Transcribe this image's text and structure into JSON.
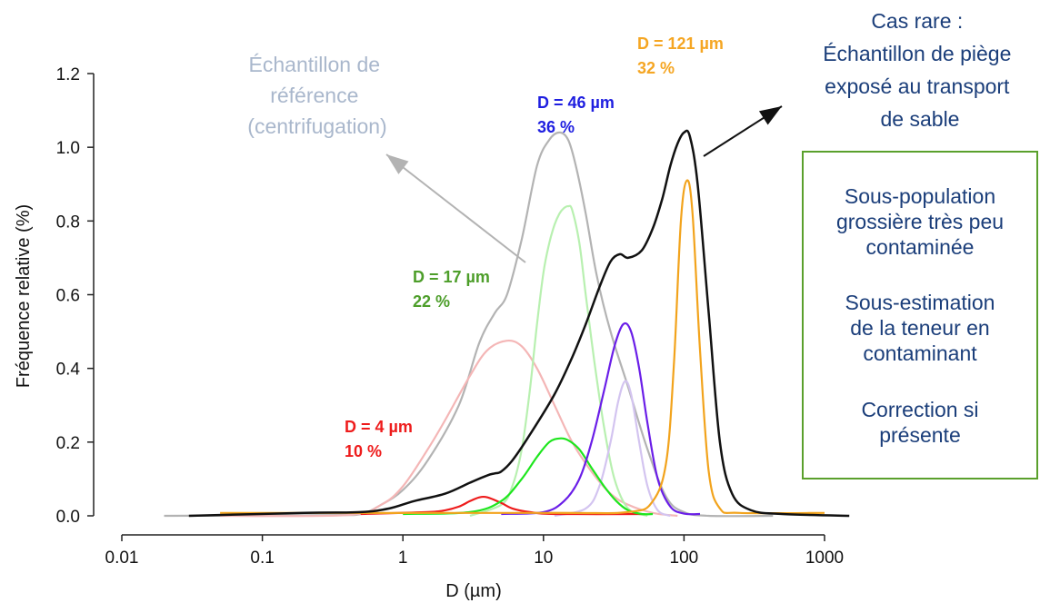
{
  "chart_data": {
    "type": "line",
    "title": "",
    "xlabel": "D (µm)",
    "ylabel": "Fréquence relative (%)",
    "xscale": "log",
    "xlim": [
      0.01,
      1000
    ],
    "ylim": [
      0,
      1.2
    ],
    "xticks": [
      "0.01",
      "0.1",
      "1",
      "10",
      "100",
      "1000"
    ],
    "yticks": [
      "0.0",
      "0.2",
      "0.4",
      "0.6",
      "0.8",
      "1.0",
      "1.2"
    ],
    "grid": false,
    "series": [
      {
        "color": "#b3b3b3",
        "x": [
          0.02,
          0.3,
          0.5,
          0.7,
          1.0,
          1.5,
          2.5,
          3.5,
          4.5,
          5.5,
          7,
          9,
          11,
          13,
          15,
          17,
          20,
          24,
          30,
          40,
          55,
          75,
          100,
          150,
          430
        ],
        "y": [
          0,
          0.002,
          0.005,
          0.03,
          0.07,
          0.15,
          0.3,
          0.47,
          0.55,
          0.6,
          0.75,
          0.95,
          1.02,
          1.04,
          1.02,
          0.95,
          0.82,
          0.65,
          0.5,
          0.35,
          0.18,
          0.05,
          0.01,
          0,
          0
        ]
      },
      {
        "color": "#f4b6b6",
        "x": [
          0.05,
          0.4,
          0.7,
          1.0,
          1.5,
          2,
          3,
          4,
          5.5,
          7,
          9,
          12,
          16,
          22,
          30,
          40,
          60,
          90
        ],
        "y": [
          0,
          0.002,
          0.03,
          0.08,
          0.18,
          0.26,
          0.38,
          0.45,
          0.475,
          0.46,
          0.4,
          0.3,
          0.2,
          0.12,
          0.06,
          0.03,
          0.008,
          0
        ]
      },
      {
        "color": "#b8f0b0",
        "x": [
          3,
          5,
          6,
          7,
          8,
          9,
          10,
          11,
          12,
          13,
          14,
          15,
          16,
          18,
          20,
          23,
          27,
          32,
          40,
          55
        ],
        "y": [
          0,
          0.03,
          0.08,
          0.18,
          0.34,
          0.52,
          0.66,
          0.74,
          0.79,
          0.82,
          0.835,
          0.84,
          0.83,
          0.74,
          0.6,
          0.42,
          0.24,
          0.1,
          0.02,
          0
        ]
      },
      {
        "color": "#d3c4f0",
        "x": [
          12,
          20,
          25,
          30,
          34,
          38,
          42,
          48,
          55,
          65,
          80
        ],
        "y": [
          0,
          0.02,
          0.08,
          0.2,
          0.31,
          0.365,
          0.33,
          0.2,
          0.08,
          0.015,
          0
        ]
      },
      {
        "color": "#ee1c1c",
        "x": [
          0.5,
          1.5,
          2,
          2.5,
          3,
          3.5,
          4,
          5,
          6,
          8,
          12,
          50
        ],
        "y": [
          0.005,
          0.01,
          0.015,
          0.025,
          0.04,
          0.05,
          0.05,
          0.035,
          0.02,
          0.01,
          0.005,
          0.005
        ]
      },
      {
        "color": "#1ee61e",
        "x": [
          1,
          3,
          5,
          7,
          9,
          11,
          13,
          15,
          18,
          22,
          27,
          33,
          40,
          50,
          60
        ],
        "y": [
          0.005,
          0.01,
          0.04,
          0.1,
          0.16,
          0.2,
          0.21,
          0.205,
          0.18,
          0.13,
          0.08,
          0.04,
          0.015,
          0.005,
          0.005
        ]
      },
      {
        "color": "#6a1ee8",
        "x": [
          5,
          10,
          14,
          18,
          22,
          27,
          32,
          37,
          42,
          48,
          55,
          65,
          80,
          100,
          130
        ],
        "y": [
          0.005,
          0.01,
          0.04,
          0.1,
          0.2,
          0.34,
          0.46,
          0.52,
          0.5,
          0.4,
          0.25,
          0.1,
          0.025,
          0.006,
          0.005
        ]
      },
      {
        "color": "#f2a31c",
        "x": [
          0.05,
          10,
          40,
          60,
          75,
          85,
          95,
          105,
          115,
          130,
          150,
          180,
          250,
          1000
        ],
        "y": [
          0.008,
          0.008,
          0.01,
          0.04,
          0.15,
          0.42,
          0.8,
          0.91,
          0.82,
          0.45,
          0.12,
          0.02,
          0.008,
          0.008
        ]
      },
      {
        "color": "#111111",
        "x": [
          0.03,
          0.2,
          0.5,
          0.8,
          1.2,
          2,
          3,
          4,
          4.5,
          5,
          6,
          8,
          12,
          16,
          20,
          25,
          30,
          35,
          40,
          50,
          60,
          70,
          80,
          90,
          100,
          110,
          125,
          150,
          180,
          220,
          300,
          500,
          1500
        ],
        "y": [
          0,
          0.008,
          0.01,
          0.02,
          0.04,
          0.06,
          0.09,
          0.11,
          0.115,
          0.12,
          0.15,
          0.22,
          0.33,
          0.43,
          0.52,
          0.62,
          0.69,
          0.71,
          0.7,
          0.72,
          0.78,
          0.86,
          0.95,
          1.01,
          1.04,
          1.03,
          0.9,
          0.55,
          0.2,
          0.06,
          0.015,
          0.005,
          0
        ]
      }
    ],
    "annotations": [
      {
        "d": "D = 4 µm",
        "pct": "10 %",
        "color": "#ee1c1c"
      },
      {
        "d": "D = 17 µm",
        "pct": "22 %",
        "color": "#4d9e2a"
      },
      {
        "d": "D = 46 µm",
        "pct": "36 %",
        "color": "#1f1fe0"
      },
      {
        "d": "D = 121 µm",
        "pct": "32 %",
        "color": "#f5a623"
      }
    ],
    "reference_label": [
      "Échantillon de",
      "référence",
      "(centrifugation)"
    ],
    "case_label": [
      "Cas rare :",
      "Échantillon de piège",
      "exposé au transport",
      "de sable"
    ]
  },
  "info_box": {
    "para1": "Sous-population\ngrossière très peu\ncontaminée",
    "para2": "Sous-estimation\nde la teneur en\ncontaminant",
    "para3": "Correction si\nprésente"
  }
}
